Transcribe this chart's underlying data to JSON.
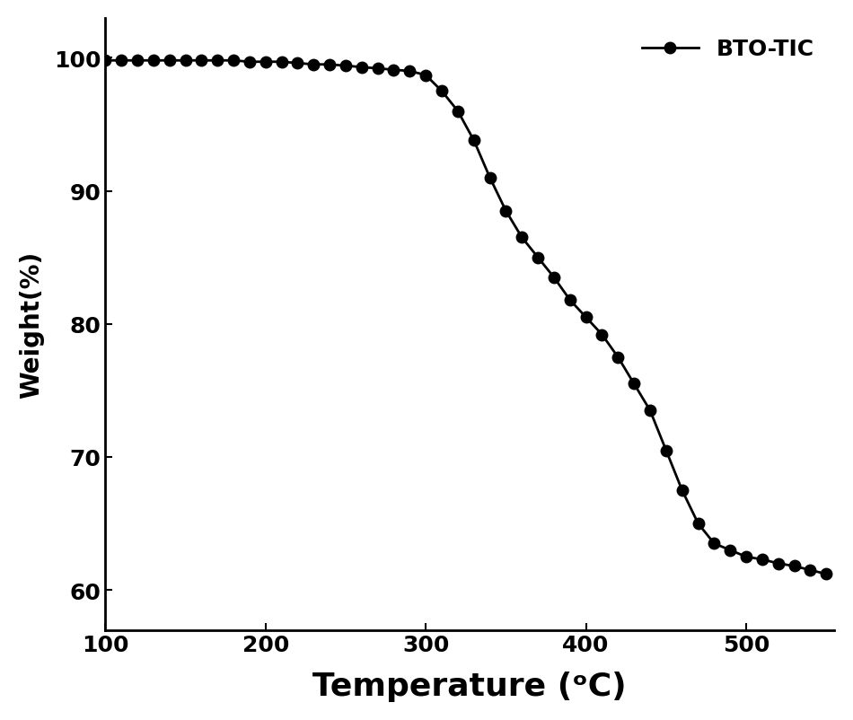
{
  "x": [
    100,
    110,
    120,
    130,
    140,
    150,
    160,
    170,
    180,
    190,
    200,
    210,
    220,
    230,
    240,
    250,
    260,
    270,
    280,
    290,
    300,
    310,
    320,
    330,
    340,
    350,
    360,
    370,
    380,
    390,
    400,
    410,
    420,
    430,
    440,
    450,
    460,
    470,
    480,
    490,
    500,
    510,
    520,
    530,
    540,
    550
  ],
  "y": [
    99.8,
    99.8,
    99.8,
    99.8,
    99.8,
    99.8,
    99.8,
    99.8,
    99.8,
    99.7,
    99.7,
    99.7,
    99.6,
    99.5,
    99.5,
    99.4,
    99.3,
    99.2,
    99.1,
    99.0,
    98.7,
    97.5,
    96.0,
    93.8,
    91.0,
    88.5,
    86.5,
    85.0,
    83.5,
    81.8,
    80.5,
    79.2,
    77.5,
    75.5,
    73.5,
    70.5,
    67.5,
    65.0,
    63.5,
    63.0,
    62.5,
    62.3,
    62.0,
    61.8,
    61.5,
    61.2
  ],
  "line_color": "#000000",
  "marker_color": "#000000",
  "marker_size": 9,
  "line_width": 2.0,
  "xlabel": "Temperature (ᵒC)",
  "ylabel": "Weight(%)",
  "xlim": [
    100,
    555
  ],
  "ylim": [
    57,
    103
  ],
  "xticks": [
    100,
    200,
    300,
    400,
    500
  ],
  "yticks": [
    60,
    70,
    80,
    90,
    100
  ],
  "legend_label": "BTO-TIC",
  "legend_loc": "upper right",
  "background_color": "#ffffff",
  "xlabel_fontsize": 26,
  "ylabel_fontsize": 20,
  "tick_fontsize": 18,
  "legend_fontsize": 18
}
